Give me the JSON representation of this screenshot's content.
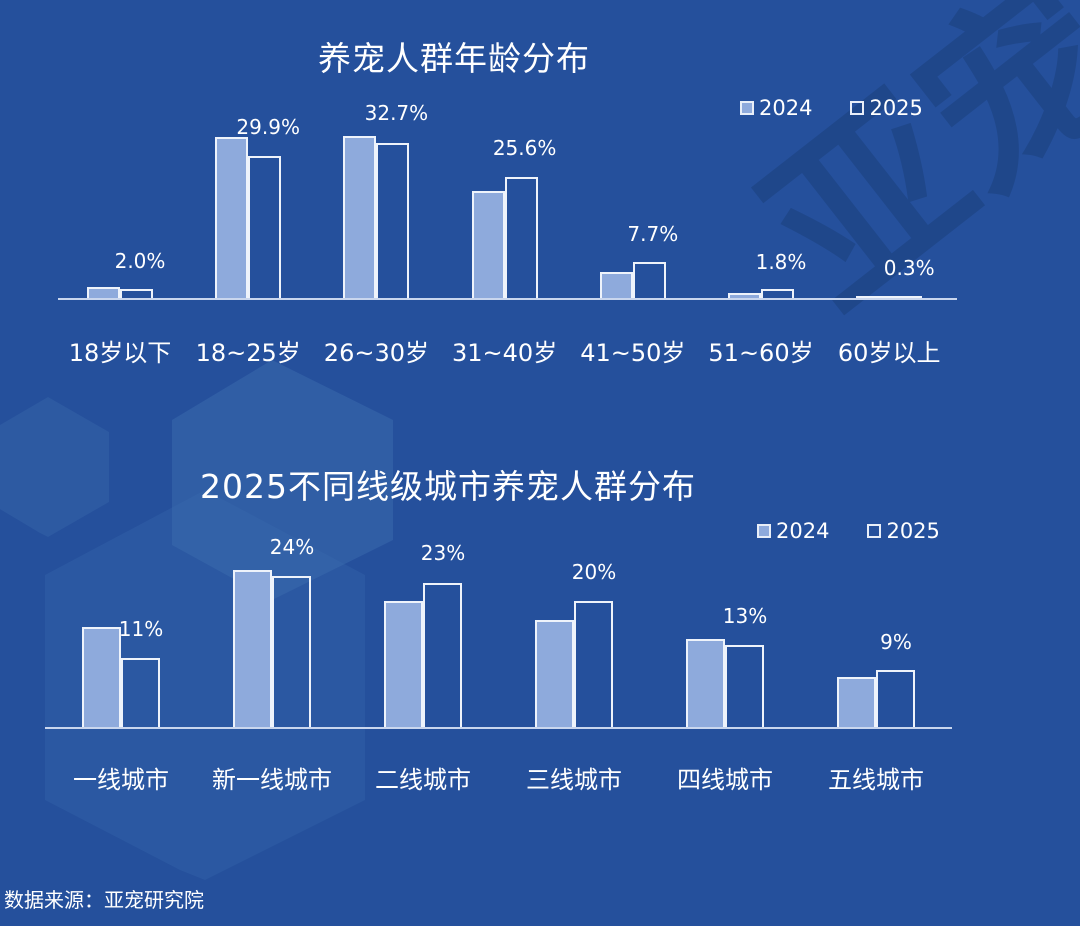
{
  "colors": {
    "background": "#25509c",
    "series_2024": "#8eaadc",
    "series_2025_outline": "#eef3fb"
  },
  "watermark": "亚宠研",
  "source": "数据来源：亚宠研究院",
  "legend": {
    "s2024": "2024",
    "s2025": "2025"
  },
  "chart_data": [
    {
      "type": "bar",
      "title": "养宠人群年龄分布",
      "categories": [
        "18岁以下",
        "18~25岁",
        "26~30岁",
        "31~40岁",
        "41~50岁",
        "51~60岁",
        "60岁以上"
      ],
      "series": [
        {
          "name": "2024",
          "values": [
            2.3,
            34.0,
            34.2,
            22.6,
            5.5,
            1.1,
            0.3
          ]
        },
        {
          "name": "2025",
          "values": [
            2.0,
            29.9,
            32.7,
            25.6,
            7.7,
            1.8,
            0.3
          ]
        }
      ],
      "data_labels": [
        "2.0%",
        "29.9%",
        "32.7%",
        "25.6%",
        "7.7%",
        "1.8%",
        "0.3%"
      ],
      "xlabel": "",
      "ylabel": "",
      "ylim": [
        0,
        35
      ],
      "grid": false,
      "legend_position": "top-right"
    },
    {
      "type": "bar",
      "title": "2025不同线级城市养宠人群分布",
      "categories": [
        "一线城市",
        "新一线城市",
        "二线城市",
        "三线城市",
        "四线城市",
        "五线城市"
      ],
      "series": [
        {
          "name": "2024",
          "values": [
            16,
            25,
            20,
            17,
            14,
            8
          ]
        },
        {
          "name": "2025",
          "values": [
            11,
            24,
            23,
            20,
            13,
            9
          ]
        }
      ],
      "data_labels": [
        "11%",
        "24%",
        "23%",
        "20%",
        "13%",
        "9%"
      ],
      "xlabel": "",
      "ylabel": "",
      "ylim": [
        0,
        26
      ],
      "grid": false,
      "legend_position": "top-right"
    }
  ]
}
